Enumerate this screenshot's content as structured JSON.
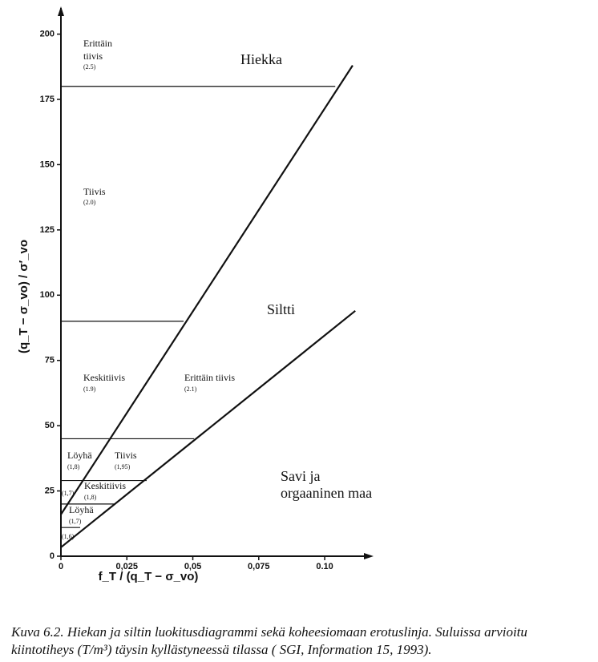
{
  "chart_data": {
    "type": "line",
    "x_label": "f_T / (q_T − σ_vo)",
    "y_label": "(q_T − σ_vo) / σ′_vo",
    "xlim": [
      0,
      0.117
    ],
    "ylim": [
      0,
      210
    ],
    "xticks": [
      0,
      {
        "value": 0.025,
        "label": "0,025"
      },
      {
        "value": 0.05,
        "label": "0,05"
      },
      {
        "value": 0.075,
        "label": "0,075"
      },
      {
        "value": 0.1,
        "label": "0.10"
      }
    ],
    "yticks": [
      0,
      25,
      50,
      75,
      100,
      125,
      150,
      175,
      200
    ],
    "series": [
      {
        "color": "#111111",
        "x": [
          0,
          0.1106
        ],
        "values": [
          16,
          188
        ]
      },
      {
        "color": "#111111",
        "x": [
          0,
          0.1116
        ],
        "values": [
          3.4,
          94
        ]
      },
      {
        "color": "#111111",
        "x": [
          0,
          0.104
        ],
        "values": [
          180,
          180
        ]
      },
      {
        "color": "#111111",
        "x": [
          0,
          0.0465
        ],
        "values": [
          90,
          90
        ]
      },
      {
        "color": "#111111",
        "x": [
          0,
          0.0505
        ],
        "values": [
          45,
          45
        ]
      },
      {
        "color": "#111111",
        "x": [
          0,
          0.0325
        ],
        "values": [
          29,
          29
        ]
      },
      {
        "color": "#111111",
        "x": [
          0,
          0.0204
        ],
        "values": [
          20,
          20
        ]
      },
      {
        "color": "#111111",
        "x": [
          0,
          0.0073
        ],
        "values": [
          11,
          11
        ]
      }
    ],
    "annotations": [
      "Hiekka",
      "Siltti",
      "Savi ja",
      "orgaaninen maa",
      "Erittäin",
      "tiivis",
      "(2.5)",
      "Tiivis",
      "(2.0)",
      "Keskitiivis",
      "(1.9)",
      "Erittäin tiivis",
      "(2.1)",
      "Löyhä",
      "(1,8)",
      "Tiivis",
      "(1,95)",
      "(1,7)",
      "Keskitiivis",
      "(1,8)",
      "Löyhä",
      "(1,7)",
      "(1,6)"
    ]
  },
  "caption": "Kuva 6.2. Hiekan ja siltin luokitusdiagrammi sekä koheesiomaan erotuslinja. Suluissa arvioitu kiintotiheys (T/m³) täysin kyllästyneessä tilassa ( SGI, Information 15, 1993)."
}
